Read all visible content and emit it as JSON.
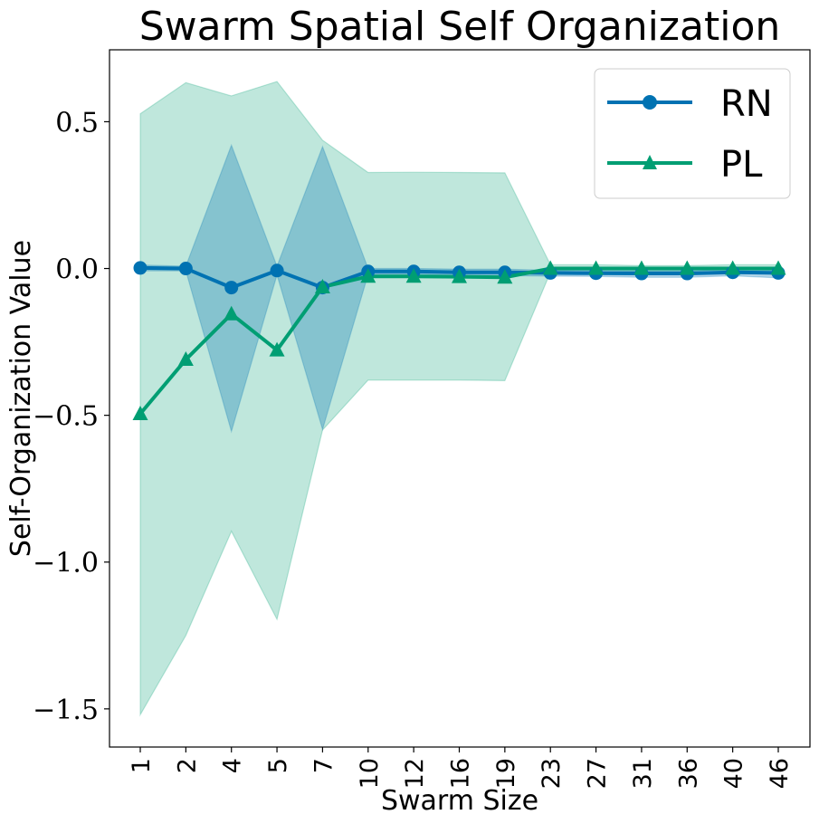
{
  "chart_data": {
    "type": "line",
    "title": "Swarm Spatial Self Organization",
    "xlabel": "Swarm Size",
    "ylabel": "Self-Organization Value",
    "categories": [
      "1",
      "2",
      "4",
      "5",
      "7",
      "10",
      "12",
      "16",
      "19",
      "23",
      "27",
      "31",
      "36",
      "40",
      "46"
    ],
    "ylim": [
      -1.63,
      0.745
    ],
    "yticks": [
      0.5,
      0.0,
      -0.5,
      -1.0,
      -1.5
    ],
    "ytick_labels": [
      "0.5",
      "0.0",
      "−0.5",
      "−1.0",
      "−1.5"
    ],
    "grid": false,
    "legend_position": "top-right",
    "series": [
      {
        "name": "RN",
        "color": "#0072b2",
        "marker": "circle",
        "values": [
          0.002,
          0.0,
          -0.065,
          -0.007,
          -0.065,
          -0.01,
          -0.01,
          -0.013,
          -0.013,
          -0.015,
          -0.016,
          -0.017,
          -0.017,
          -0.013,
          -0.015
        ],
        "upper": [
          0.012,
          0.008,
          0.42,
          0.008,
          0.415,
          0.0,
          0.0,
          -0.002,
          -0.002,
          -0.006,
          -0.007,
          -0.008,
          -0.008,
          -0.003,
          -0.005
        ],
        "lower": [
          -0.008,
          -0.008,
          -0.555,
          -0.022,
          -0.548,
          -0.02,
          -0.02,
          -0.024,
          -0.024,
          -0.026,
          -0.027,
          -0.03,
          -0.03,
          -0.025,
          -0.032
        ]
      },
      {
        "name": "PL",
        "color": "#009e73",
        "marker": "triangle",
        "values": [
          -0.495,
          -0.31,
          -0.155,
          -0.278,
          -0.063,
          -0.027,
          -0.027,
          -0.028,
          -0.03,
          0.0,
          0.0,
          0.0,
          0.0,
          0.0,
          0.0
        ],
        "upper": [
          0.527,
          0.633,
          0.588,
          0.637,
          0.437,
          0.327,
          0.328,
          0.327,
          0.326,
          0.013,
          0.013,
          0.01,
          0.01,
          0.013,
          0.013
        ],
        "lower": [
          -1.52,
          -1.25,
          -0.895,
          -1.195,
          -0.55,
          -0.38,
          -0.38,
          -0.38,
          -0.382,
          -0.013,
          -0.013,
          -0.01,
          -0.01,
          -0.013,
          -0.013
        ]
      }
    ]
  }
}
